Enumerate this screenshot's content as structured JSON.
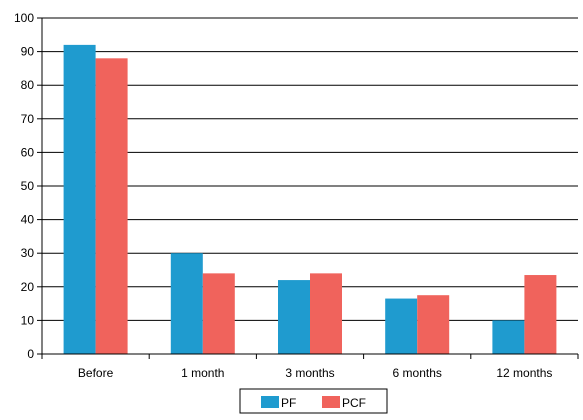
{
  "chart_data": {
    "type": "bar",
    "categories": [
      "Before",
      "1 month",
      "3 months",
      "6 months",
      "12 months"
    ],
    "series": [
      {
        "name": "PF",
        "values": [
          92,
          30,
          22,
          16.5,
          10
        ],
        "color": "#1f9bcf"
      },
      {
        "name": "PCF",
        "values": [
          88,
          24,
          24,
          17.5,
          23.5
        ],
        "color": "#f0635c"
      }
    ],
    "ylim": [
      0,
      100
    ],
    "yticks": [
      0,
      10,
      20,
      30,
      40,
      50,
      60,
      70,
      80,
      90,
      100
    ],
    "grid": true,
    "legend_position": "bottom-center",
    "title": "",
    "xlabel": "",
    "ylabel": ""
  }
}
